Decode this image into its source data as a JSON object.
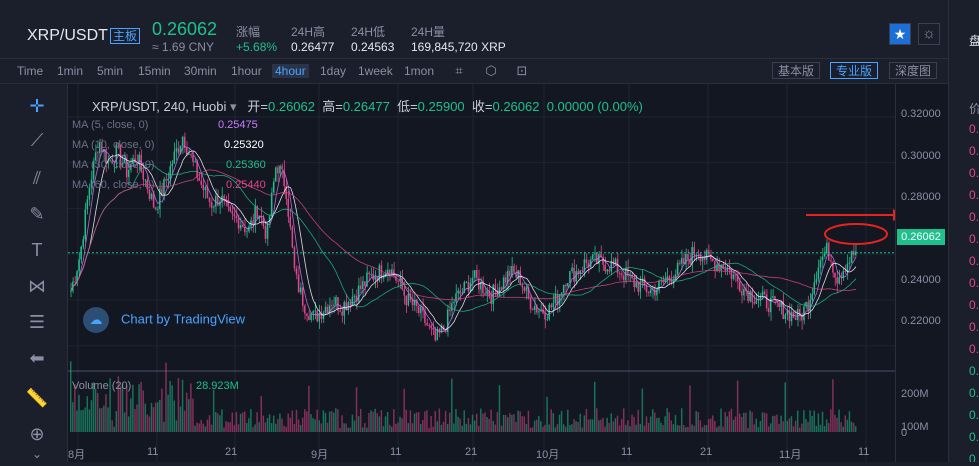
{
  "header": {
    "pair": "XRP/USDT",
    "badge": "主板",
    "price": "0.26062",
    "cny": "≈ 1.69 CNY",
    "stats": [
      {
        "label": "涨幅",
        "value": "+5.68%",
        "up": true
      },
      {
        "label": "24H高",
        "value": "0.26477"
      },
      {
        "label": "24H低",
        "value": "0.24563"
      },
      {
        "label": "24H量",
        "value": "169,845,720 XRP"
      }
    ]
  },
  "toolbar": {
    "timeframes": [
      "Time",
      "1min",
      "5min",
      "15min",
      "30min",
      "1hour",
      "4hour",
      "1day",
      "1week",
      "1mon"
    ],
    "active": "4hour",
    "views": [
      "基本版",
      "专业版",
      "深度图"
    ],
    "active_view": "专业版"
  },
  "legend": {
    "title": "XRP/USDT, 240, Huobi",
    "open_label": "开=",
    "open": "0.26062",
    "high_label": "高=",
    "high": "0.26477",
    "low_label": "低=",
    "low": "0.25900",
    "close_label": "收=",
    "close": "0.26062",
    "change": "0.00000 (0.00%)",
    "ma": [
      {
        "label": "MA (5, close, 0)",
        "value": "0.25475",
        "color": "#c77dff"
      },
      {
        "label": "MA (10, close, 0)",
        "value": "0.25320",
        "color": "#ffffff"
      },
      {
        "label": "MA (30, close, 0)",
        "value": "0.25360",
        "color": "#1fc08b"
      },
      {
        "label": "MA (60, close, 0)",
        "value": "0.25440",
        "color": "#e0468a"
      }
    ],
    "volume_label": "Volume (20)",
    "volume_value": "28.923M"
  },
  "watermark": "Chart by TradingView",
  "right_side": {
    "title": "盘",
    "items": [
      "价",
      "0.",
      "0.",
      "0.",
      "0.",
      "0.",
      "0.",
      "0.",
      "0.",
      "0.",
      "0.",
      "0.",
      "0.",
      "0.",
      "0.",
      "0.",
      "0."
    ]
  },
  "chart_data": {
    "type": "candlestick",
    "last_price": "0.26062",
    "y_ticks": [
      "0.32000",
      "0.30000",
      "0.28000",
      "0.24000",
      "0.22000"
    ],
    "y_range": [
      0.212,
      0.33
    ],
    "vol_ticks": [
      "200M",
      "100M",
      "0"
    ],
    "x_ticks": [
      "8月",
      "11",
      "21",
      "9月",
      "11",
      "21",
      "10月",
      "11",
      "21",
      "11月",
      "11"
    ],
    "colors": {
      "up": "#1fc08b",
      "down": "#e0468a"
    },
    "close_path": [
      0.244,
      0.26,
      0.29,
      0.31,
      0.3,
      0.305,
      0.296,
      0.303,
      0.292,
      0.28,
      0.29,
      0.302,
      0.312,
      0.3,
      0.29,
      0.282,
      0.285,
      0.276,
      0.275,
      0.27,
      0.28,
      0.268,
      0.3,
      0.29,
      0.25,
      0.238,
      0.232,
      0.236,
      0.24,
      0.237,
      0.241,
      0.245,
      0.25,
      0.252,
      0.255,
      0.248,
      0.24,
      0.236,
      0.23,
      0.222,
      0.228,
      0.24,
      0.244,
      0.25,
      0.246,
      0.242,
      0.247,
      0.252,
      0.25,
      0.24,
      0.236,
      0.235,
      0.24,
      0.25,
      0.252,
      0.256,
      0.257,
      0.256,
      0.255,
      0.252,
      0.248,
      0.246,
      0.244,
      0.246,
      0.25,
      0.253,
      0.258,
      0.262,
      0.258,
      0.256,
      0.255,
      0.25,
      0.245,
      0.242,
      0.24,
      0.238,
      0.236,
      0.234,
      0.232,
      0.24,
      0.256,
      0.262,
      0.25,
      0.256,
      0.261
    ]
  }
}
